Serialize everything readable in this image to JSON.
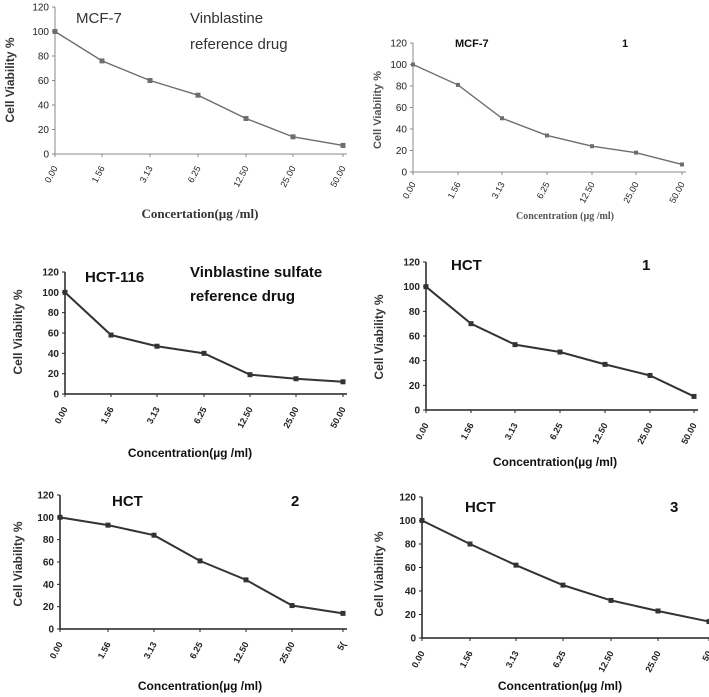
{
  "chart_data": [
    {
      "type": "line",
      "title": "MCF-7",
      "subtitle": "Vinblastine reference drug",
      "xlabel": "Concertation(µg /ml)",
      "ylabel": "Cell Viability %",
      "categories": [
        "0.00",
        "1.56",
        "3.13",
        "6.25",
        "12.50",
        "25.00",
        "50.00"
      ],
      "y_ticks": [
        "0",
        "20",
        "40",
        "60",
        "80",
        "100",
        "120"
      ],
      "ylim": [
        0,
        120
      ],
      "values": [
        100,
        76,
        60,
        48,
        29,
        14,
        7
      ],
      "color": "#6e6e6e"
    },
    {
      "type": "line",
      "title": "MCF-7",
      "subtitle": "1",
      "xlabel": "Concentration (µg /ml)",
      "ylabel": "Cell Viability %",
      "categories": [
        "0.00",
        "1.56",
        "3.13",
        "6.25",
        "12.50",
        "25.00",
        "50.00"
      ],
      "y_ticks": [
        "0",
        "20",
        "40",
        "60",
        "80",
        "100",
        "120"
      ],
      "ylim": [
        0,
        120
      ],
      "values": [
        100,
        81,
        50,
        34,
        24,
        18,
        7
      ],
      "color": "#6e6e6e"
    },
    {
      "type": "line",
      "title": "HCT-116",
      "subtitle": "Vinblastine sulfate reference drug",
      "xlabel": "Concentration(µg /ml)",
      "ylabel": "Cell Viability %",
      "categories": [
        "0.00",
        "1.56",
        "3.13",
        "6.25",
        "12.50",
        "25.00",
        "50.00"
      ],
      "y_ticks": [
        "0",
        "20",
        "40",
        "60",
        "80",
        "100",
        "120"
      ],
      "ylim": [
        0,
        120
      ],
      "values": [
        100,
        58,
        47,
        40,
        19,
        15,
        12
      ],
      "color": "#333333"
    },
    {
      "type": "line",
      "title": "HCT",
      "subtitle": "1",
      "xlabel": "Concentration(µg /ml)",
      "ylabel": "Cell Viability %",
      "categories": [
        "0.00",
        "1.56",
        "3.13",
        "6.25",
        "12.50",
        "25.00",
        "50.00"
      ],
      "y_ticks": [
        "0",
        "20",
        "40",
        "60",
        "80",
        "100",
        "120"
      ],
      "ylim": [
        0,
        120
      ],
      "values": [
        100,
        70,
        53,
        47,
        37,
        28,
        11
      ],
      "color": "#333333"
    },
    {
      "type": "line",
      "title": "HCT",
      "subtitle": "2",
      "xlabel": "Concentration(µg /ml)",
      "ylabel": "Cell Viability %",
      "categories": [
        "0.00",
        "1.56",
        "3.13",
        "6.25",
        "12.50",
        "25.00",
        "5("
      ],
      "y_ticks": [
        "0",
        "20",
        "40",
        "60",
        "80",
        "100",
        "120"
      ],
      "ylim": [
        0,
        120
      ],
      "values": [
        100,
        93,
        84,
        61,
        44,
        21,
        14
      ],
      "color": "#333333"
    },
    {
      "type": "line",
      "title": "HCT",
      "subtitle": "3",
      "xlabel": "Concentration(µg /ml)",
      "ylabel": "Cell Viability %",
      "categories": [
        "0.00",
        "1.56",
        "3.13",
        "6.25",
        "12.50",
        "25.00",
        "50"
      ],
      "y_ticks": [
        "0",
        "20",
        "40",
        "60",
        "80",
        "100",
        "120"
      ],
      "ylim": [
        0,
        120
      ],
      "values": [
        100,
        80,
        62,
        45,
        32,
        23,
        14
      ],
      "color": "#333333"
    }
  ]
}
